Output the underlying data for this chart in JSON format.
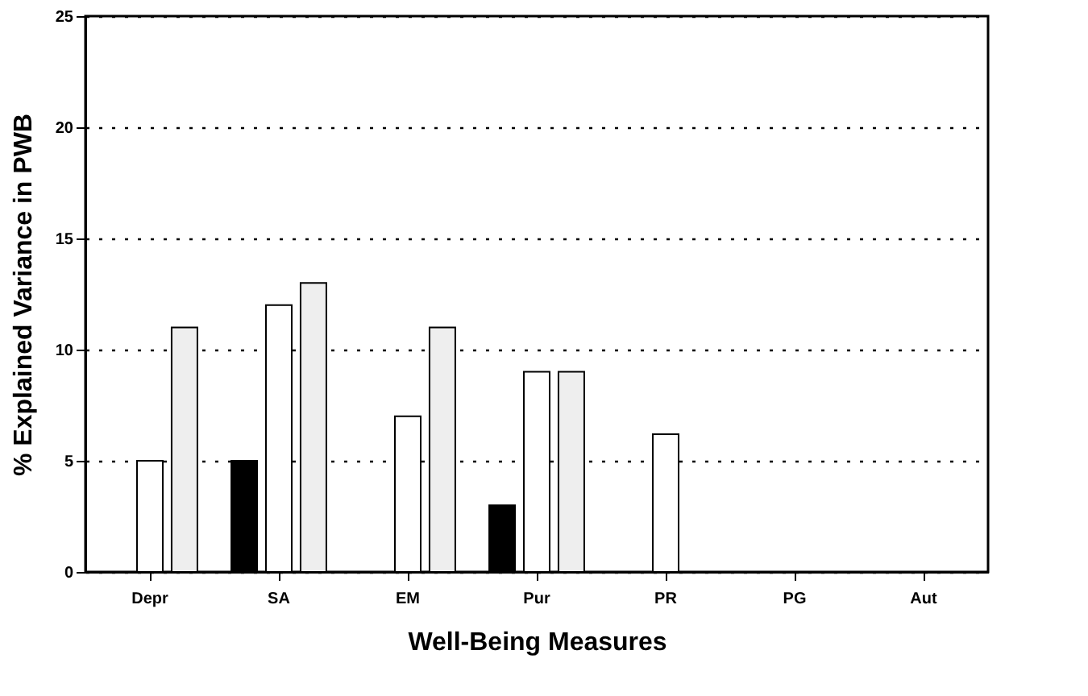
{
  "chart_data": {
    "type": "bar",
    "xlabel": "Well-Being Measures",
    "ylabel": "% Explained Variance in PWB",
    "categories": [
      "Depr",
      "SA",
      "EM",
      "Pur",
      "PR",
      "PG",
      "Aut"
    ],
    "series": [
      {
        "color": "#000000",
        "values": [
          null,
          5,
          null,
          3,
          null,
          null,
          null
        ]
      },
      {
        "color": "#ffffff",
        "values": [
          5,
          12,
          7,
          9,
          6.2,
          null,
          null
        ]
      },
      {
        "color": "#eeeeee",
        "values": [
          11,
          13,
          11,
          9,
          null,
          null,
          null
        ]
      }
    ],
    "ylim": [
      0,
      25
    ],
    "yticks": [
      0,
      5,
      10,
      15,
      20,
      25
    ],
    "grid": "y",
    "legend": false
  }
}
